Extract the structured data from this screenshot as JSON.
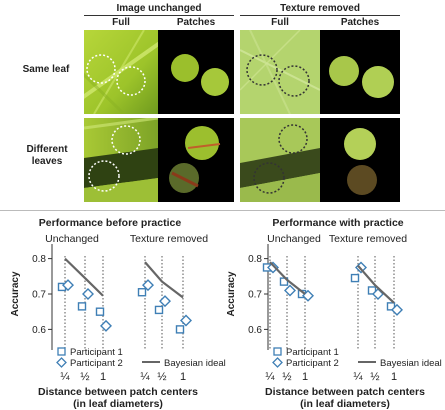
{
  "top": {
    "group_headers": [
      "Image unchanged",
      "Texture removed"
    ],
    "column_headers": [
      "Full",
      "Patches",
      "Full",
      "Patches"
    ],
    "row_labels": [
      "Same leaf",
      "Different leaves"
    ]
  },
  "colors": {
    "marker": "#3f7fb5",
    "ideal_line": "#666666"
  },
  "chart_data": [
    {
      "type": "scatter",
      "title": "Performance before practice",
      "ylabel": "Accuracy",
      "xlabel": "Distance between patch centers (in leaf diameters)",
      "ylim": [
        0.57,
        0.83
      ],
      "yticks": [
        "0.8",
        "0.7",
        "0.6"
      ],
      "ytick_values": [
        0.8,
        0.7,
        0.6
      ],
      "groups": [
        {
          "label": "Unchanged",
          "x": [
            "¼",
            "½",
            "1"
          ]
        },
        {
          "label": "Texture removed",
          "x": [
            "¼",
            "½",
            "1"
          ]
        }
      ],
      "series": [
        {
          "name": "Participant 1",
          "marker": "square",
          "values": [
            [
              0.72,
              0.665,
              0.65
            ],
            [
              0.705,
              0.655,
              0.6
            ]
          ]
        },
        {
          "name": "Participant 2",
          "marker": "diamond",
          "values": [
            [
              0.725,
              0.7,
              0.61
            ],
            [
              0.725,
              0.68,
              0.625
            ]
          ]
        },
        {
          "name": "Bayesian ideal",
          "marker": "line",
          "values": [
            [
              0.8,
              0.745,
              0.695
            ],
            [
              0.79,
              0.735,
              0.69
            ]
          ]
        }
      ],
      "legend": "bottom"
    },
    {
      "type": "scatter",
      "title": "Performance with practice",
      "ylabel": "Accuracy",
      "xlabel": "Distance between patch centers (in leaf diameters)",
      "ylim": [
        0.57,
        0.83
      ],
      "yticks": [
        "0.8",
        "0.7",
        "0.6"
      ],
      "ytick_values": [
        0.8,
        0.7,
        0.6
      ],
      "groups": [
        {
          "label": "Unchanged",
          "x": [
            "¼",
            "½",
            "1"
          ]
        },
        {
          "label": "Texture removed",
          "x": [
            "¼",
            "½",
            "1"
          ]
        }
      ],
      "series": [
        {
          "name": "Participant 1",
          "marker": "square",
          "values": [
            [
              0.775,
              0.735,
              0.7
            ],
            [
              0.745,
              0.71,
              0.665
            ]
          ]
        },
        {
          "name": "Participant 2",
          "marker": "diamond",
          "values": [
            [
              0.775,
              0.71,
              0.695
            ],
            [
              0.775,
              0.7,
              0.655
            ]
          ]
        },
        {
          "name": "Bayesian ideal",
          "marker": "line",
          "values": [
            [
              0.79,
              0.74,
              0.7
            ],
            [
              0.78,
              0.725,
              0.675
            ]
          ]
        }
      ],
      "legend": "bottom"
    }
  ]
}
